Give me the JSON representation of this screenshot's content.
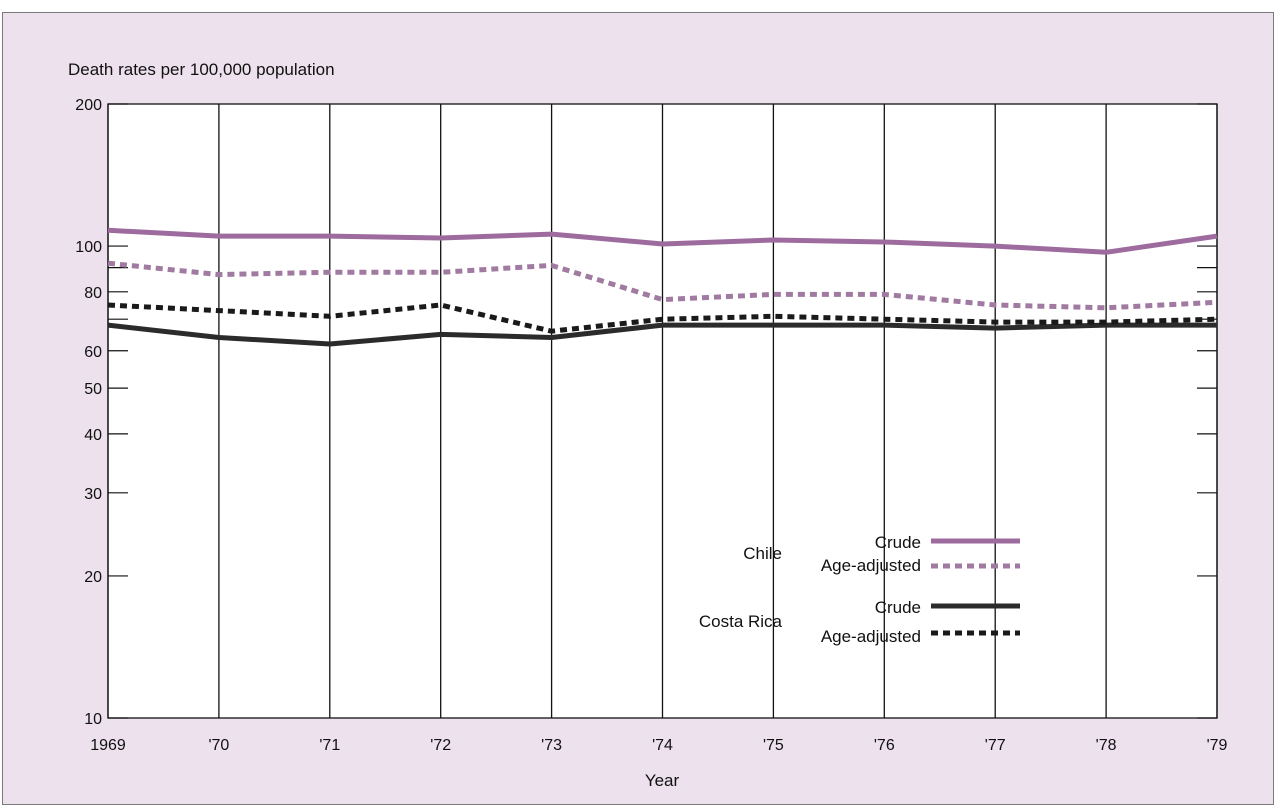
{
  "chart_data": {
    "type": "line",
    "ylabel": "Death rates per 100,000 population",
    "xlabel": "Year",
    "yscale": "log",
    "ylim": [
      10,
      200
    ],
    "y_ticks": [
      {
        "value": 10,
        "label": "10"
      },
      {
        "value": 20,
        "label": "20"
      },
      {
        "value": 30,
        "label": "30"
      },
      {
        "value": 40,
        "label": "40"
      },
      {
        "value": 50,
        "label": "50"
      },
      {
        "value": 60,
        "label": "60"
      },
      {
        "value": 80,
        "label": "80"
      },
      {
        "value": 100,
        "label": "100"
      },
      {
        "value": 200,
        "label": "200"
      }
    ],
    "y_minor_ticks": [
      70,
      90
    ],
    "x": [
      1969,
      1970,
      1971,
      1972,
      1973,
      1974,
      1975,
      1976,
      1977,
      1978,
      1979
    ],
    "x_tick_labels": [
      "1969",
      "'70",
      "'71",
      "'72",
      "'73",
      "'74",
      "'75",
      "'76",
      "'77",
      "'78",
      "'79"
    ],
    "grid": "vertical lines at each year",
    "legend_placement": "center-right",
    "series": [
      {
        "group": "Chile",
        "name": "Crude",
        "color": "#9e6b9e",
        "style": "solid",
        "values": [
          108,
          105,
          105,
          104,
          106,
          101,
          103,
          102,
          100,
          97,
          105
        ]
      },
      {
        "group": "Chile",
        "name": "Age-adjusted",
        "color": "#a07aa0",
        "style": "dotted",
        "values": [
          92,
          87,
          88,
          88,
          91,
          77,
          79,
          79,
          75,
          74,
          76
        ]
      },
      {
        "group": "Costa Rica",
        "name": "Crude",
        "color": "#2b2b2b",
        "style": "solid",
        "values": [
          68,
          64,
          62,
          65,
          64,
          68,
          68,
          68,
          67,
          68,
          68
        ]
      },
      {
        "group": "Costa Rica",
        "name": "Age-adjusted",
        "color": "#1a1a1a",
        "style": "dotted",
        "values": [
          75,
          73,
          71,
          75,
          66,
          70,
          71,
          70,
          69,
          69,
          70
        ]
      }
    ],
    "legend": {
      "groups": [
        {
          "label": "Chile",
          "entries": [
            "Crude",
            "Age-adjusted"
          ]
        },
        {
          "label": "Costa Rica",
          "entries": [
            "Crude",
            "Age-adjusted"
          ]
        }
      ]
    }
  }
}
